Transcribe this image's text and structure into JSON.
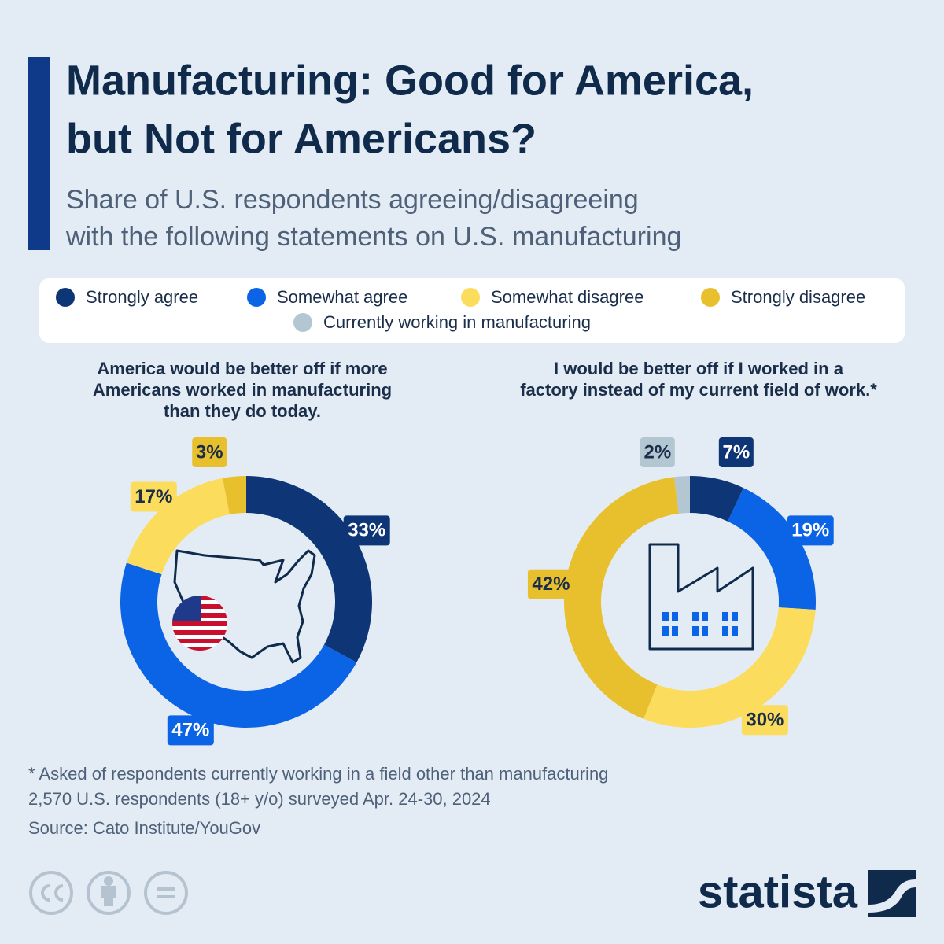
{
  "title": [
    "Manufacturing: Good for America,",
    "but Not for Americans?"
  ],
  "subtitle": [
    "Share of U.S. respondents agreeing/disagreeing",
    "with the following statements on U.S. manufacturing"
  ],
  "legend": [
    {
      "name": "Strongly agree",
      "color": "#0e3576"
    },
    {
      "name": "Somewhat agree",
      "color": "#0b63e5"
    },
    {
      "name": "Somewhat disagree",
      "color": "#fbdc5c"
    },
    {
      "name": "Strongly disagree",
      "color": "#e8c02e"
    },
    {
      "name": "Currently working in manufacturing",
      "color": "#b3c7d2"
    }
  ],
  "chart_data": [
    {
      "type": "donut",
      "title": [
        "America would be better off if more",
        "Americans worked in manufacturing",
        "than they do today."
      ],
      "categories": [
        "Strongly agree",
        "Somewhat agree",
        "Somewhat disagree",
        "Strongly disagree"
      ],
      "values": [
        33,
        47,
        17,
        3
      ],
      "value_labels": [
        "33%",
        "47%",
        "17%",
        "3%"
      ],
      "colors": [
        "#0e3576",
        "#0b63e5",
        "#fbdc5c",
        "#e8c02e"
      ]
    },
    {
      "type": "donut",
      "title": [
        "I would be better off if I worked in a",
        "factory instead of my current field of work.*"
      ],
      "categories": [
        "Strongly agree",
        "Somewhat agree",
        "Somewhat disagree",
        "Strongly disagree",
        "Currently working in manufacturing"
      ],
      "values": [
        7,
        19,
        30,
        42,
        2
      ],
      "value_labels": [
        "7%",
        "19%",
        "30%",
        "42%",
        "2%"
      ],
      "colors": [
        "#0e3576",
        "#0b63e5",
        "#fbdc5c",
        "#e8c02e",
        "#b3c7d2"
      ]
    }
  ],
  "notes": [
    "* Asked of respondents currently working in a field other than manufacturing",
    "2,570 U.S. respondents (18+ y/o) surveyed Apr. 24-30, 2024"
  ],
  "source": "Source: Cato Institute/YouGov",
  "brand": "statista"
}
